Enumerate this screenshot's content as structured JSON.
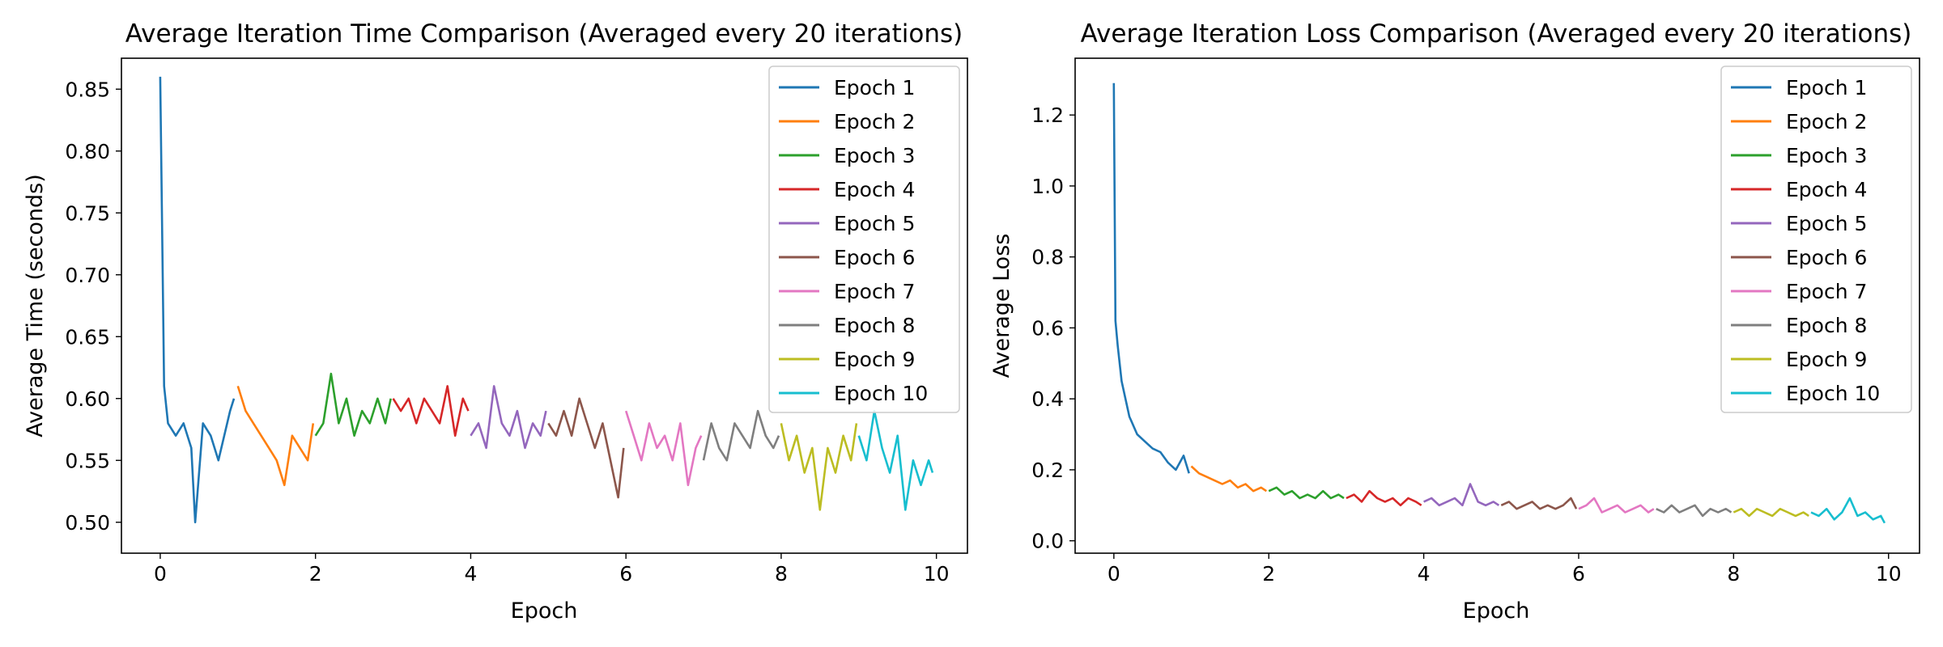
{
  "colors": [
    "#1f77b4",
    "#ff7f0e",
    "#2ca02c",
    "#d62728",
    "#9467bd",
    "#8c564b",
    "#e377c2",
    "#7f7f7f",
    "#bcbd22",
    "#17becf"
  ],
  "legend": {
    "location": "upper right",
    "entries": [
      "Epoch 1",
      "Epoch 2",
      "Epoch 3",
      "Epoch 4",
      "Epoch 5",
      "Epoch 6",
      "Epoch 7",
      "Epoch 8",
      "Epoch 9",
      "Epoch 10"
    ]
  },
  "chart_data": [
    {
      "type": "line",
      "title": "Average Iteration Time Comparison (Averaged every 20 iterations)",
      "xlabel": "Epoch",
      "ylabel": "Average Time (seconds)",
      "xlim": [
        -0.5,
        10.4
      ],
      "ylim": [
        0.475,
        0.875
      ],
      "xticks": [
        0,
        2,
        4,
        6,
        8,
        10
      ],
      "xtick_labels": [
        "0",
        "2",
        "4",
        "6",
        "8",
        "10"
      ],
      "yticks": [
        0.5,
        0.55,
        0.6,
        0.65,
        0.7,
        0.75,
        0.8,
        0.85
      ],
      "ytick_labels": [
        "0.50",
        "0.55",
        "0.60",
        "0.65",
        "0.70",
        "0.75",
        "0.80",
        "0.85"
      ],
      "grid": false,
      "legend_position": "top-right",
      "series": [
        {
          "name": "Epoch 1",
          "x": [
            0,
            0.05,
            0.1,
            0.2,
            0.3,
            0.4,
            0.45,
            0.55,
            0.65,
            0.75,
            0.9,
            0.95
          ],
          "values": [
            0.86,
            0.61,
            0.58,
            0.57,
            0.58,
            0.56,
            0.5,
            0.58,
            0.57,
            0.55,
            0.59,
            0.6
          ]
        },
        {
          "name": "Epoch 2",
          "x": [
            1.0,
            1.1,
            1.2,
            1.3,
            1.4,
            1.5,
            1.6,
            1.7,
            1.8,
            1.9,
            1.97
          ],
          "values": [
            0.61,
            0.59,
            0.58,
            0.57,
            0.56,
            0.55,
            0.53,
            0.57,
            0.56,
            0.55,
            0.58
          ]
        },
        {
          "name": "Epoch 3",
          "x": [
            2.0,
            2.1,
            2.2,
            2.3,
            2.4,
            2.5,
            2.6,
            2.7,
            2.8,
            2.9,
            2.97
          ],
          "values": [
            0.57,
            0.58,
            0.62,
            0.58,
            0.6,
            0.57,
            0.59,
            0.58,
            0.6,
            0.58,
            0.6
          ]
        },
        {
          "name": "Epoch 4",
          "x": [
            3.0,
            3.1,
            3.2,
            3.3,
            3.4,
            3.5,
            3.6,
            3.7,
            3.8,
            3.9,
            3.97
          ],
          "values": [
            0.6,
            0.59,
            0.6,
            0.58,
            0.6,
            0.59,
            0.58,
            0.61,
            0.57,
            0.6,
            0.59
          ]
        },
        {
          "name": "Epoch 5",
          "x": [
            4.0,
            4.1,
            4.2,
            4.3,
            4.4,
            4.5,
            4.6,
            4.7,
            4.8,
            4.9,
            4.97
          ],
          "values": [
            0.57,
            0.58,
            0.56,
            0.61,
            0.58,
            0.57,
            0.59,
            0.56,
            0.58,
            0.57,
            0.59
          ]
        },
        {
          "name": "Epoch 6",
          "x": [
            5.0,
            5.1,
            5.2,
            5.3,
            5.4,
            5.5,
            5.6,
            5.7,
            5.8,
            5.9,
            5.97
          ],
          "values": [
            0.58,
            0.57,
            0.59,
            0.57,
            0.6,
            0.58,
            0.56,
            0.58,
            0.55,
            0.52,
            0.56
          ]
        },
        {
          "name": "Epoch 7",
          "x": [
            6.0,
            6.1,
            6.2,
            6.3,
            6.4,
            6.5,
            6.6,
            6.7,
            6.8,
            6.9,
            6.97
          ],
          "values": [
            0.59,
            0.57,
            0.55,
            0.58,
            0.56,
            0.57,
            0.55,
            0.58,
            0.53,
            0.56,
            0.57
          ]
        },
        {
          "name": "Epoch 8",
          "x": [
            7.0,
            7.1,
            7.2,
            7.3,
            7.4,
            7.5,
            7.6,
            7.7,
            7.8,
            7.9,
            7.97
          ],
          "values": [
            0.55,
            0.58,
            0.56,
            0.55,
            0.58,
            0.57,
            0.56,
            0.59,
            0.57,
            0.56,
            0.57
          ]
        },
        {
          "name": "Epoch 9",
          "x": [
            8.0,
            8.1,
            8.2,
            8.3,
            8.4,
            8.5,
            8.6,
            8.7,
            8.8,
            8.9,
            8.97
          ],
          "values": [
            0.58,
            0.55,
            0.57,
            0.54,
            0.56,
            0.51,
            0.56,
            0.54,
            0.57,
            0.55,
            0.58
          ]
        },
        {
          "name": "Epoch 10",
          "x": [
            9.0,
            9.1,
            9.2,
            9.3,
            9.4,
            9.5,
            9.6,
            9.7,
            9.8,
            9.9,
            9.95
          ],
          "values": [
            0.57,
            0.55,
            0.59,
            0.56,
            0.54,
            0.57,
            0.51,
            0.55,
            0.53,
            0.55,
            0.54
          ]
        }
      ]
    },
    {
      "type": "line",
      "title": "Average Iteration Loss Comparison (Averaged every 20 iterations)",
      "xlabel": "Epoch",
      "ylabel": "Average Loss",
      "xlim": [
        -0.5,
        10.4
      ],
      "ylim": [
        -0.035,
        1.36
      ],
      "xticks": [
        0,
        2,
        4,
        6,
        8,
        10
      ],
      "xtick_labels": [
        "0",
        "2",
        "4",
        "6",
        "8",
        "10"
      ],
      "yticks": [
        0.0,
        0.2,
        0.4,
        0.6,
        0.8,
        1.0,
        1.2
      ],
      "ytick_labels": [
        "0.0",
        "0.2",
        "0.4",
        "0.6",
        "0.8",
        "1.0",
        "1.2"
      ],
      "grid": false,
      "legend_position": "top-right",
      "series": [
        {
          "name": "Epoch 1",
          "x": [
            0,
            0.02,
            0.05,
            0.1,
            0.15,
            0.2,
            0.3,
            0.4,
            0.5,
            0.6,
            0.7,
            0.8,
            0.9,
            0.97
          ],
          "values": [
            1.29,
            0.62,
            0.55,
            0.45,
            0.4,
            0.35,
            0.3,
            0.28,
            0.26,
            0.25,
            0.22,
            0.2,
            0.24,
            0.19
          ]
        },
        {
          "name": "Epoch 2",
          "x": [
            1.0,
            1.1,
            1.2,
            1.3,
            1.4,
            1.5,
            1.6,
            1.7,
            1.8,
            1.9,
            1.97
          ],
          "values": [
            0.21,
            0.19,
            0.18,
            0.17,
            0.16,
            0.17,
            0.15,
            0.16,
            0.14,
            0.15,
            0.14
          ]
        },
        {
          "name": "Epoch 3",
          "x": [
            2.0,
            2.1,
            2.2,
            2.3,
            2.4,
            2.5,
            2.6,
            2.7,
            2.8,
            2.9,
            2.97
          ],
          "values": [
            0.14,
            0.15,
            0.13,
            0.14,
            0.12,
            0.13,
            0.12,
            0.14,
            0.12,
            0.13,
            0.12
          ]
        },
        {
          "name": "Epoch 4",
          "x": [
            3.0,
            3.1,
            3.2,
            3.3,
            3.4,
            3.5,
            3.6,
            3.7,
            3.8,
            3.9,
            3.97
          ],
          "values": [
            0.12,
            0.13,
            0.11,
            0.14,
            0.12,
            0.11,
            0.12,
            0.1,
            0.12,
            0.11,
            0.1
          ]
        },
        {
          "name": "Epoch 5",
          "x": [
            4.0,
            4.1,
            4.2,
            4.3,
            4.4,
            4.5,
            4.6,
            4.7,
            4.8,
            4.9,
            4.97
          ],
          "values": [
            0.11,
            0.12,
            0.1,
            0.11,
            0.12,
            0.1,
            0.16,
            0.11,
            0.1,
            0.11,
            0.1
          ]
        },
        {
          "name": "Epoch 6",
          "x": [
            5.0,
            5.1,
            5.2,
            5.3,
            5.4,
            5.5,
            5.6,
            5.7,
            5.8,
            5.9,
            5.97
          ],
          "values": [
            0.1,
            0.11,
            0.09,
            0.1,
            0.11,
            0.09,
            0.1,
            0.09,
            0.1,
            0.12,
            0.09
          ]
        },
        {
          "name": "Epoch 7",
          "x": [
            6.0,
            6.1,
            6.2,
            6.3,
            6.4,
            6.5,
            6.6,
            6.7,
            6.8,
            6.9,
            6.97
          ],
          "values": [
            0.09,
            0.1,
            0.12,
            0.08,
            0.09,
            0.1,
            0.08,
            0.09,
            0.1,
            0.08,
            0.09
          ]
        },
        {
          "name": "Epoch 8",
          "x": [
            7.0,
            7.1,
            7.2,
            7.3,
            7.4,
            7.5,
            7.6,
            7.7,
            7.8,
            7.9,
            7.97
          ],
          "values": [
            0.09,
            0.08,
            0.1,
            0.08,
            0.09,
            0.1,
            0.07,
            0.09,
            0.08,
            0.09,
            0.08
          ]
        },
        {
          "name": "Epoch 9",
          "x": [
            8.0,
            8.1,
            8.2,
            8.3,
            8.4,
            8.5,
            8.6,
            8.7,
            8.8,
            8.9,
            8.97
          ],
          "values": [
            0.08,
            0.09,
            0.07,
            0.09,
            0.08,
            0.07,
            0.09,
            0.08,
            0.07,
            0.08,
            0.07
          ]
        },
        {
          "name": "Epoch 10",
          "x": [
            9.0,
            9.1,
            9.2,
            9.3,
            9.4,
            9.5,
            9.6,
            9.7,
            9.8,
            9.9,
            9.95
          ],
          "values": [
            0.08,
            0.07,
            0.09,
            0.06,
            0.08,
            0.12,
            0.07,
            0.08,
            0.06,
            0.07,
            0.05
          ]
        }
      ]
    }
  ]
}
